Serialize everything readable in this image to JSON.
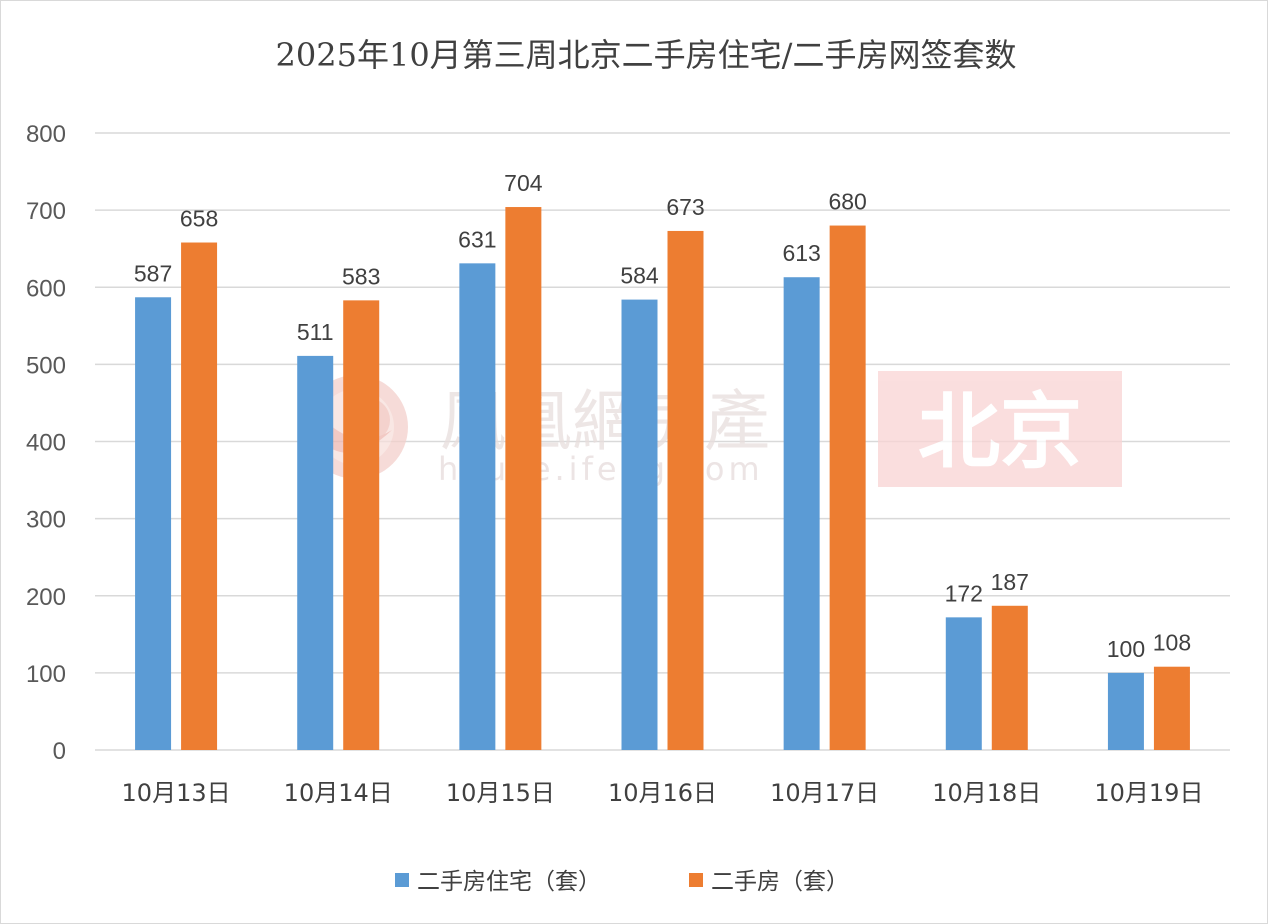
{
  "chart_data": {
    "type": "bar",
    "title": "2025年10月第三周北京二手房住宅/二手房网签套数",
    "categories": [
      "10月13日",
      "10月14日",
      "10月15日",
      "10月16日",
      "10月17日",
      "10月18日",
      "10月19日"
    ],
    "series": [
      {
        "name": "二手房住宅（套）",
        "color": "#5b9bd5",
        "values": [
          587,
          511,
          631,
          584,
          613,
          172,
          100
        ]
      },
      {
        "name": "二手房（套）",
        "color": "#ed7d31",
        "values": [
          658,
          583,
          704,
          673,
          680,
          187,
          108
        ]
      }
    ],
    "ylim": [
      0,
      800
    ],
    "yticks": [
      0,
      100,
      200,
      300,
      400,
      500,
      600,
      700,
      800
    ],
    "grid": true,
    "legend_position": "bottom",
    "data_labels": true
  },
  "watermark": {
    "brand": "鳳凰網房產",
    "url": "house.ifeng.com",
    "city": "北京",
    "city_bg_color": "#f9d4d4",
    "logo_color": "#f1c3bd"
  }
}
